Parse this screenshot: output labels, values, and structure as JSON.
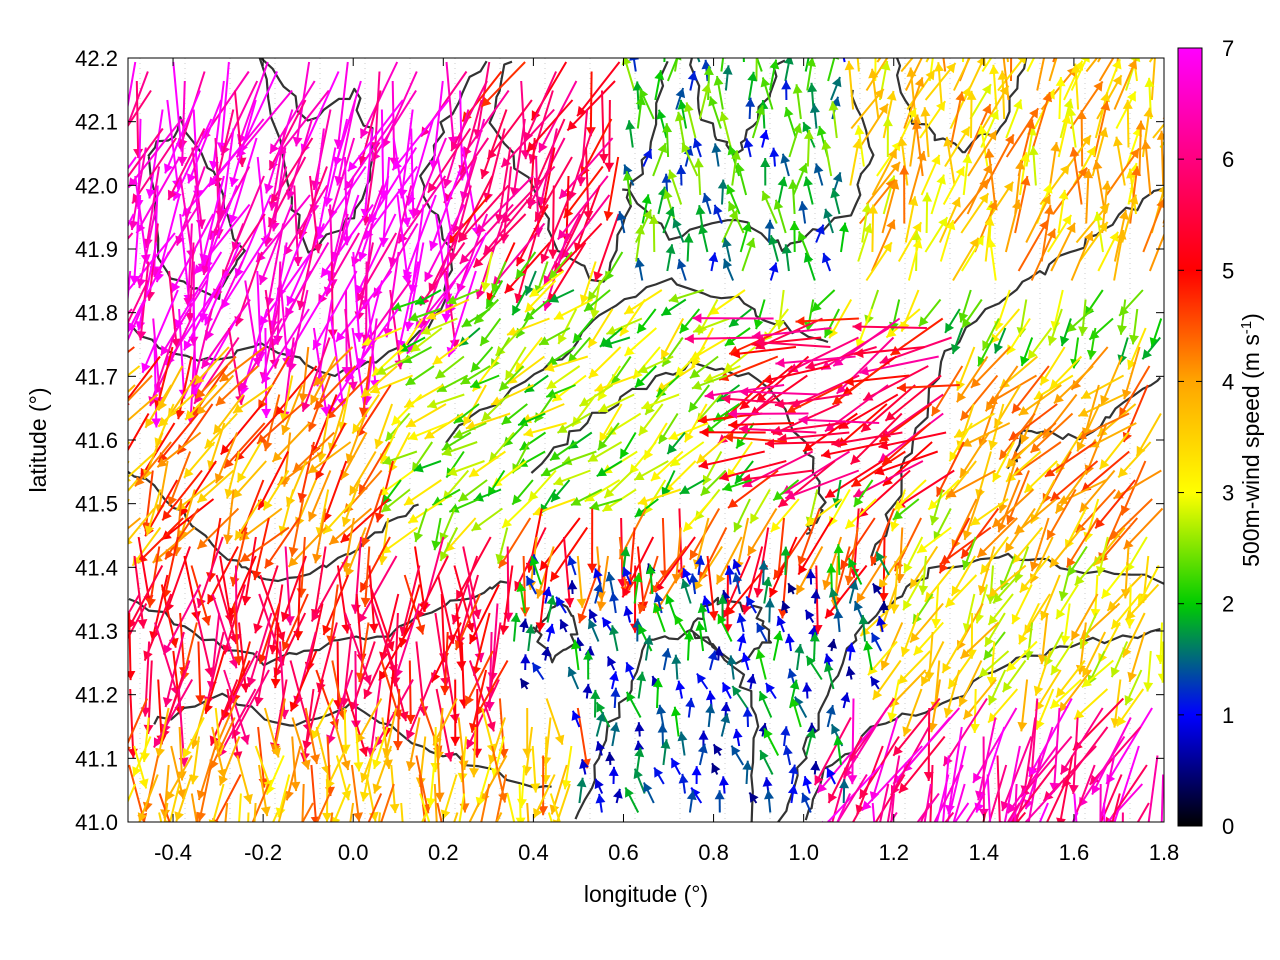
{
  "chart_data": {
    "type": "vector-field",
    "xlabel": "longitude (°)",
    "ylabel": "latitude (°)",
    "xlim": [
      -0.5,
      1.8
    ],
    "ylim": [
      41.0,
      42.2
    ],
    "xticks": [
      -0.4,
      -0.2,
      0.0,
      0.2,
      0.4,
      0.6,
      0.8,
      1.0,
      1.2,
      1.4,
      1.6,
      1.8
    ],
    "yticks": [
      41.0,
      41.1,
      41.2,
      41.3,
      41.4,
      41.5,
      41.6,
      41.7,
      41.8,
      41.9,
      42.0,
      42.1,
      42.2
    ],
    "xtick_labels": [
      "-0.4",
      "-0.2",
      "0.0",
      "0.2",
      "0.4",
      "0.6",
      "0.8",
      "1.0",
      "1.2",
      "1.4",
      "1.6",
      "1.8"
    ],
    "ytick_labels": [
      "41.0",
      "41.1",
      "41.2",
      "41.3",
      "41.4",
      "41.5",
      "41.6",
      "41.7",
      "41.8",
      "41.9",
      "42.0",
      "42.1",
      "42.2"
    ],
    "colorbar": {
      "label_prefix": "500m-wind speed (m s",
      "label_exp": "-1",
      "label_suffix": ")",
      "range": [
        0,
        7
      ],
      "ticks": [
        0,
        1,
        2,
        3,
        4,
        5,
        6,
        7
      ],
      "tick_labels": [
        "0",
        "1",
        "2",
        "3",
        "4",
        "5",
        "6",
        "7"
      ],
      "palette": [
        "#000000",
        "#0000ff",
        "#00cc00",
        "#ffff00",
        "#ffa500",
        "#ff0000",
        "#ff00ff"
      ]
    },
    "grid": false,
    "contour_color": "#333333",
    "wind_regions": [
      {
        "lon": [
          -0.5,
          0.3
        ],
        "lat": [
          41.75,
          42.2
        ],
        "speed": 6.7,
        "direction_deg": 255
      },
      {
        "lon": [
          0.3,
          0.7
        ],
        "lat": [
          41.9,
          42.2
        ],
        "speed": 5.5,
        "direction_deg": 250
      },
      {
        "lon": [
          0.6,
          1.1
        ],
        "lat": [
          41.85,
          42.2
        ],
        "speed": 1.8,
        "direction_deg": 90
      },
      {
        "lon": [
          1.1,
          1.8
        ],
        "lat": [
          41.85,
          42.2
        ],
        "speed": 3.6,
        "direction_deg": 75
      },
      {
        "lon": [
          -0.5,
          0.1
        ],
        "lat": [
          41.45,
          41.75
        ],
        "speed": 4.2,
        "direction_deg": 240
      },
      {
        "lon": [
          0.1,
          0.9
        ],
        "lat": [
          41.5,
          41.85
        ],
        "speed": 2.6,
        "direction_deg": 220
      },
      {
        "lon": [
          0.9,
          1.35
        ],
        "lat": [
          41.55,
          41.8
        ],
        "speed": 5.5,
        "direction_deg": 200
      },
      {
        "lon": [
          1.35,
          1.8
        ],
        "lat": [
          41.45,
          41.75
        ],
        "speed": 4.0,
        "direction_deg": 230
      },
      {
        "lon": [
          0.35,
          1.3
        ],
        "lat": [
          41.4,
          41.5
        ],
        "speed": 4.6,
        "direction_deg": 255
      },
      {
        "lon": [
          -0.5,
          0.35
        ],
        "lat": [
          41.2,
          41.45
        ],
        "speed": 5.3,
        "direction_deg": 265
      },
      {
        "lon": [
          0.35,
          1.2
        ],
        "lat": [
          41.0,
          41.4
        ],
        "speed": 1.3,
        "direction_deg": 100
      },
      {
        "lon": [
          -0.5,
          0.5
        ],
        "lat": [
          41.0,
          41.2
        ],
        "speed": 3.8,
        "direction_deg": 265
      },
      {
        "lon": [
          1.2,
          1.8
        ],
        "lat": [
          41.2,
          41.45
        ],
        "speed": 3.2,
        "direction_deg": 245
      },
      {
        "lon": [
          1.1,
          1.8
        ],
        "lat": [
          41.0,
          41.2
        ],
        "speed": 6.3,
        "direction_deg": 250
      }
    ]
  }
}
